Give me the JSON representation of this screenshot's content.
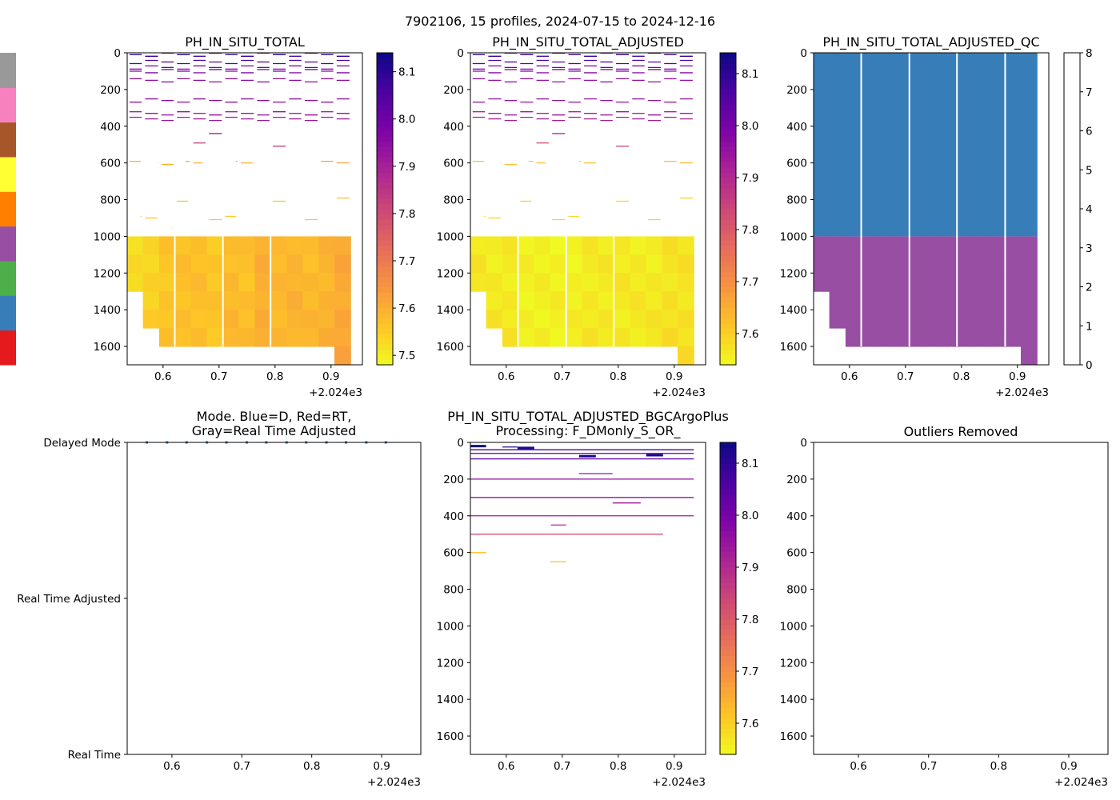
{
  "figure": {
    "suptitle": "7902106, 15 profiles, 2024-07-15 to 2024-12-16",
    "x_offset_label": "+2.024e3"
  },
  "colors": {
    "plasma_r": [
      "#f0f921",
      "#fdc527",
      "#f89540",
      "#e66c5c",
      "#cc4778",
      "#aa2395",
      "#7e03a8",
      "#4c02a1",
      "#0d0887"
    ],
    "qc_colors": [
      "#e41a1c",
      "#377eb8",
      "#4daf4a",
      "#984ea3",
      "#ff7f00",
      "#ffff33",
      "#a65628",
      "#f781bf",
      "#999999"
    ],
    "mode_dot": "#1f77b4"
  },
  "chart_data": [
    {
      "id": "ph_total",
      "type": "heatmap",
      "title": "PH_IN_SITU_TOTAL",
      "xlabel": "",
      "ylabel": "",
      "xlim": [
        0.536,
        0.956
      ],
      "ylim": [
        1700,
        0
      ],
      "x_ticks": [
        0.6,
        0.7,
        0.8,
        0.9
      ],
      "x_tick_labels": [
        "0.6",
        "0.7",
        "0.8",
        "0.9"
      ],
      "y_ticks": [
        0,
        200,
        400,
        600,
        800,
        1000,
        1200,
        1400,
        1600
      ],
      "y_tick_labels": [
        "0",
        "200",
        "400",
        "600",
        "800",
        "1000",
        "1200",
        "1400",
        "1600"
      ],
      "x_offset_label": "+2.024e3",
      "colorbar": {
        "cmap": "plasma_r",
        "range": [
          7.48,
          8.14
        ],
        "ticks": [
          7.5,
          7.6,
          7.7,
          7.8,
          7.9,
          8.0,
          8.1
        ],
        "tick_labels": [
          "7.5",
          "7.6",
          "7.7",
          "7.8",
          "7.9",
          "8.0",
          "8.1"
        ]
      },
      "profile_edges": [
        0.536,
        0.564,
        0.593,
        0.621,
        0.65,
        0.678,
        0.707,
        0.735,
        0.764,
        0.792,
        0.821,
        0.849,
        0.878,
        0.906,
        0.935
      ],
      "deep_base": [
        7.53,
        7.54,
        7.56,
        7.57,
        7.57,
        7.56,
        7.58,
        7.57,
        7.6,
        7.58,
        7.59,
        7.58,
        7.59,
        7.61
      ],
      "deep_bottom": [
        1300,
        1500,
        1600,
        1600,
        1600,
        1600,
        1600,
        1600,
        1600,
        1600,
        1600,
        1600,
        1600,
        1700
      ],
      "gaps_after_profile": [
        3,
        6,
        9
      ],
      "shallow_lines": [
        {
          "x0": 0.536,
          "x1": 0.935,
          "depth": 10,
          "value": 8.1
        },
        {
          "x0": 0.536,
          "x1": 0.935,
          "depth": 50,
          "value": 8.05
        },
        {
          "x0": 0.536,
          "x1": 0.935,
          "depth": 80,
          "value": 8.0
        },
        {
          "x0": 0.536,
          "x1": 0.935,
          "depth": 100,
          "value": 7.97
        },
        {
          "x0": 0.536,
          "x1": 0.935,
          "depth": 150,
          "value": 7.95
        },
        {
          "x0": 0.536,
          "x1": 0.935,
          "depth": 260,
          "value": 7.95
        },
        {
          "x0": 0.536,
          "x1": 0.935,
          "depth": 330,
          "value": 7.93
        },
        {
          "x0": 0.536,
          "x1": 0.935,
          "depth": 360,
          "value": 7.92
        },
        {
          "x0": 0.68,
          "x1": 0.707,
          "depth": 440,
          "value": 7.9
        },
        {
          "x0": 0.65,
          "x1": 0.68,
          "depth": 500,
          "value": 7.82
        },
        {
          "x0": 0.79,
          "x1": 0.82,
          "depth": 500,
          "value": 7.82
        },
        {
          "x0": 0.536,
          "x1": 0.56,
          "depth": 600,
          "value": 7.6
        },
        {
          "x0": 0.59,
          "x1": 0.62,
          "depth": 600,
          "value": 7.6
        },
        {
          "x0": 0.64,
          "x1": 0.67,
          "depth": 600,
          "value": 7.6
        },
        {
          "x0": 0.73,
          "x1": 0.76,
          "depth": 600,
          "value": 7.6
        },
        {
          "x0": 0.88,
          "x1": 0.935,
          "depth": 600,
          "value": 7.62
        },
        {
          "x0": 0.62,
          "x1": 0.645,
          "depth": 800,
          "value": 7.57
        },
        {
          "x0": 0.79,
          "x1": 0.82,
          "depth": 800,
          "value": 7.57
        },
        {
          "x0": 0.905,
          "x1": 0.935,
          "depth": 800,
          "value": 7.57
        },
        {
          "x0": 0.56,
          "x1": 0.59,
          "depth": 900,
          "value": 7.56
        },
        {
          "x0": 0.68,
          "x1": 0.73,
          "depth": 900,
          "value": 7.56
        },
        {
          "x0": 0.85,
          "x1": 0.88,
          "depth": 900,
          "value": 7.56
        }
      ]
    },
    {
      "id": "ph_adjusted",
      "type": "heatmap",
      "title": "PH_IN_SITU_TOTAL_ADJUSTED",
      "xlabel": "",
      "ylabel": "",
      "xlim": [
        0.536,
        0.956
      ],
      "ylim": [
        1700,
        0
      ],
      "x_ticks": [
        0.6,
        0.7,
        0.8,
        0.9
      ],
      "x_tick_labels": [
        "0.6",
        "0.7",
        "0.8",
        "0.9"
      ],
      "y_ticks": [
        0,
        200,
        400,
        600,
        800,
        1000,
        1200,
        1400,
        1600
      ],
      "y_tick_labels": [
        "0",
        "200",
        "400",
        "600",
        "800",
        "1000",
        "1200",
        "1400",
        "1600"
      ],
      "x_offset_label": "+2.024e3",
      "colorbar": {
        "cmap": "plasma_r",
        "range": [
          7.54,
          8.14
        ],
        "ticks": [
          7.6,
          7.7,
          7.8,
          7.9,
          8.0,
          8.1
        ],
        "tick_labels": [
          "7.6",
          "7.7",
          "7.8",
          "7.9",
          "8.0",
          "8.1"
        ]
      },
      "profile_edges": [
        0.536,
        0.564,
        0.593,
        0.621,
        0.65,
        0.678,
        0.707,
        0.735,
        0.764,
        0.792,
        0.821,
        0.849,
        0.878,
        0.906,
        0.935
      ],
      "deep_base": [
        7.57,
        7.56,
        7.56,
        7.55,
        7.55,
        7.55,
        7.55,
        7.56,
        7.56,
        7.56,
        7.56,
        7.56,
        7.57,
        7.57
      ],
      "deep_bottom": [
        1300,
        1500,
        1600,
        1600,
        1600,
        1600,
        1600,
        1600,
        1600,
        1600,
        1600,
        1600,
        1600,
        1700
      ],
      "gaps_after_profile": [
        3,
        6,
        9
      ],
      "shallow_lines": [
        {
          "x0": 0.536,
          "x1": 0.935,
          "depth": 10,
          "value": 8.1
        },
        {
          "x0": 0.536,
          "x1": 0.935,
          "depth": 50,
          "value": 8.05
        },
        {
          "x0": 0.536,
          "x1": 0.935,
          "depth": 80,
          "value": 8.0
        },
        {
          "x0": 0.536,
          "x1": 0.935,
          "depth": 100,
          "value": 7.98
        },
        {
          "x0": 0.536,
          "x1": 0.935,
          "depth": 150,
          "value": 7.96
        },
        {
          "x0": 0.536,
          "x1": 0.935,
          "depth": 260,
          "value": 7.95
        },
        {
          "x0": 0.536,
          "x1": 0.935,
          "depth": 330,
          "value": 7.94
        },
        {
          "x0": 0.536,
          "x1": 0.935,
          "depth": 360,
          "value": 7.93
        },
        {
          "x0": 0.68,
          "x1": 0.707,
          "depth": 440,
          "value": 7.9
        },
        {
          "x0": 0.65,
          "x1": 0.68,
          "depth": 500,
          "value": 7.82
        },
        {
          "x0": 0.79,
          "x1": 0.82,
          "depth": 500,
          "value": 7.82
        },
        {
          "x0": 0.536,
          "x1": 0.56,
          "depth": 600,
          "value": 7.62
        },
        {
          "x0": 0.59,
          "x1": 0.62,
          "depth": 600,
          "value": 7.62
        },
        {
          "x0": 0.64,
          "x1": 0.67,
          "depth": 600,
          "value": 7.62
        },
        {
          "x0": 0.73,
          "x1": 0.76,
          "depth": 600,
          "value": 7.62
        },
        {
          "x0": 0.88,
          "x1": 0.935,
          "depth": 600,
          "value": 7.63
        },
        {
          "x0": 0.62,
          "x1": 0.645,
          "depth": 800,
          "value": 7.6
        },
        {
          "x0": 0.79,
          "x1": 0.82,
          "depth": 800,
          "value": 7.6
        },
        {
          "x0": 0.905,
          "x1": 0.935,
          "depth": 800,
          "value": 7.6
        },
        {
          "x0": 0.56,
          "x1": 0.59,
          "depth": 900,
          "value": 7.59
        },
        {
          "x0": 0.68,
          "x1": 0.73,
          "depth": 900,
          "value": 7.59
        },
        {
          "x0": 0.85,
          "x1": 0.88,
          "depth": 900,
          "value": 7.59
        }
      ]
    },
    {
      "id": "ph_qc",
      "type": "heatmap",
      "title": "PH_IN_SITU_TOTAL_ADJUSTED_QC",
      "xlabel": "",
      "ylabel": "",
      "xlim": [
        0.536,
        0.956
      ],
      "ylim": [
        1700,
        0
      ],
      "x_ticks": [
        0.6,
        0.7,
        0.8,
        0.9
      ],
      "x_tick_labels": [
        "0.6",
        "0.7",
        "0.8",
        "0.9"
      ],
      "y_ticks": [
        0,
        200,
        400,
        600,
        800,
        1000,
        1200,
        1400,
        1600
      ],
      "y_tick_labels": [
        "0",
        "200",
        "400",
        "600",
        "800",
        "1000",
        "1200",
        "1400",
        "1600"
      ],
      "x_offset_label": "+2.024e3",
      "colorbar": {
        "cmap": "qc",
        "range": [
          0,
          8
        ],
        "ticks": [
          0,
          1,
          2,
          3,
          4,
          5,
          6,
          7,
          8
        ],
        "tick_labels": [
          "0",
          "1",
          "2",
          "3",
          "4",
          "5",
          "6",
          "7",
          "8"
        ]
      },
      "profile_edges": [
        0.536,
        0.564,
        0.593,
        0.621,
        0.65,
        0.678,
        0.707,
        0.735,
        0.764,
        0.792,
        0.821,
        0.849,
        0.878,
        0.906,
        0.935
      ],
      "deep_bottom": [
        1300,
        1500,
        1600,
        1600,
        1600,
        1600,
        1600,
        1600,
        1600,
        1600,
        1600,
        1600,
        1600,
        1700
      ],
      "gaps_after_profile": [
        3,
        6,
        9,
        12
      ],
      "qc_upper": {
        "from": 0,
        "to": 1000,
        "flag": 1
      },
      "qc_lower": {
        "from": 1000,
        "flag": 3
      }
    },
    {
      "id": "mode",
      "type": "scatter",
      "title_lines": [
        "Mode. Blue=D, Red=RT,",
        "Gray=Real Time Adjusted"
      ],
      "xlabel": "",
      "ylabel": "",
      "xlim": [
        0.536,
        0.956
      ],
      "ylim": [
        0,
        2
      ],
      "x_ticks": [
        0.6,
        0.7,
        0.8,
        0.9
      ],
      "x_tick_labels": [
        "0.6",
        "0.7",
        "0.8",
        "0.9"
      ],
      "x_offset_label": "+2.024e3",
      "y_categories": [
        "Real Time",
        "Real Time Adjusted",
        "Delayed Mode"
      ],
      "points": [
        {
          "x": 0.564,
          "mode": 2
        },
        {
          "x": 0.593,
          "mode": 2
        },
        {
          "x": 0.621,
          "mode": 2
        },
        {
          "x": 0.65,
          "mode": 2
        },
        {
          "x": 0.678,
          "mode": 2
        },
        {
          "x": 0.707,
          "mode": 2
        },
        {
          "x": 0.735,
          "mode": 2
        },
        {
          "x": 0.764,
          "mode": 2
        },
        {
          "x": 0.792,
          "mode": 2
        },
        {
          "x": 0.821,
          "mode": 2
        },
        {
          "x": 0.849,
          "mode": 2
        },
        {
          "x": 0.878,
          "mode": 2
        },
        {
          "x": 0.906,
          "mode": 2
        }
      ]
    },
    {
      "id": "ph_bgc",
      "type": "heatmap",
      "title_lines": [
        "PH_IN_SITU_TOTAL_ADJUSTED_BGCArgoPlus",
        "Processing: F_DMonly_S_OR_"
      ],
      "xlabel": "",
      "ylabel": "",
      "xlim": [
        0.536,
        0.956
      ],
      "ylim": [
        1700,
        0
      ],
      "x_ticks": [
        0.6,
        0.7,
        0.8,
        0.9
      ],
      "x_tick_labels": [
        "0.6",
        "0.7",
        "0.8",
        "0.9"
      ],
      "y_ticks": [
        0,
        200,
        400,
        600,
        800,
        1000,
        1200,
        1400,
        1600
      ],
      "y_tick_labels": [
        "0",
        "200",
        "400",
        "600",
        "800",
        "1000",
        "1200",
        "1400",
        "1600"
      ],
      "x_offset_label": "+2.024e3",
      "colorbar": {
        "cmap": "plasma_r",
        "range": [
          7.54,
          8.14
        ],
        "ticks": [
          7.6,
          7.7,
          7.8,
          7.9,
          8.0,
          8.1
        ],
        "tick_labels": [
          "7.6",
          "7.7",
          "7.8",
          "7.9",
          "8.0",
          "8.1"
        ]
      },
      "shallow_lines": [
        {
          "x0": 0.536,
          "x1": 0.564,
          "depth": 20,
          "value": 8.13
        },
        {
          "x0": 0.593,
          "x1": 0.62,
          "depth": 25,
          "value": 8.1
        },
        {
          "x0": 0.62,
          "x1": 0.65,
          "depth": 30,
          "value": 8.12
        },
        {
          "x0": 0.536,
          "x1": 0.935,
          "depth": 40,
          "value": 8.08
        },
        {
          "x0": 0.536,
          "x1": 0.935,
          "depth": 60,
          "value": 8.05
        },
        {
          "x0": 0.73,
          "x1": 0.76,
          "depth": 75,
          "value": 8.12
        },
        {
          "x0": 0.85,
          "x1": 0.88,
          "depth": 70,
          "value": 8.12
        },
        {
          "x0": 0.536,
          "x1": 0.935,
          "depth": 90,
          "value": 8.04
        },
        {
          "x0": 0.536,
          "x1": 0.935,
          "depth": 200,
          "value": 7.96
        },
        {
          "x0": 0.73,
          "x1": 0.79,
          "depth": 170,
          "value": 7.95
        },
        {
          "x0": 0.536,
          "x1": 0.935,
          "depth": 300,
          "value": 7.95
        },
        {
          "x0": 0.79,
          "x1": 0.84,
          "depth": 330,
          "value": 7.94
        },
        {
          "x0": 0.536,
          "x1": 0.935,
          "depth": 400,
          "value": 7.93
        },
        {
          "x0": 0.68,
          "x1": 0.707,
          "depth": 450,
          "value": 7.9
        },
        {
          "x0": 0.536,
          "x1": 0.88,
          "depth": 500,
          "value": 7.82
        },
        {
          "x0": 0.536,
          "x1": 0.564,
          "depth": 600,
          "value": 7.62
        },
        {
          "x0": 0.678,
          "x1": 0.707,
          "depth": 650,
          "value": 7.62
        }
      ]
    },
    {
      "id": "outliers",
      "type": "scatter",
      "title": "Outliers Removed",
      "xlabel": "",
      "ylabel": "",
      "xlim": [
        0.536,
        0.956
      ],
      "ylim": [
        1700,
        0
      ],
      "x_ticks": [
        0.6,
        0.7,
        0.8,
        0.9
      ],
      "x_tick_labels": [
        "0.6",
        "0.7",
        "0.8",
        "0.9"
      ],
      "y_ticks": [
        0,
        200,
        400,
        600,
        800,
        1000,
        1200,
        1400,
        1600
      ],
      "y_tick_labels": [
        "0",
        "200",
        "400",
        "600",
        "800",
        "1000",
        "1200",
        "1400",
        "1600"
      ],
      "x_offset_label": "+2.024e3",
      "points": []
    }
  ]
}
